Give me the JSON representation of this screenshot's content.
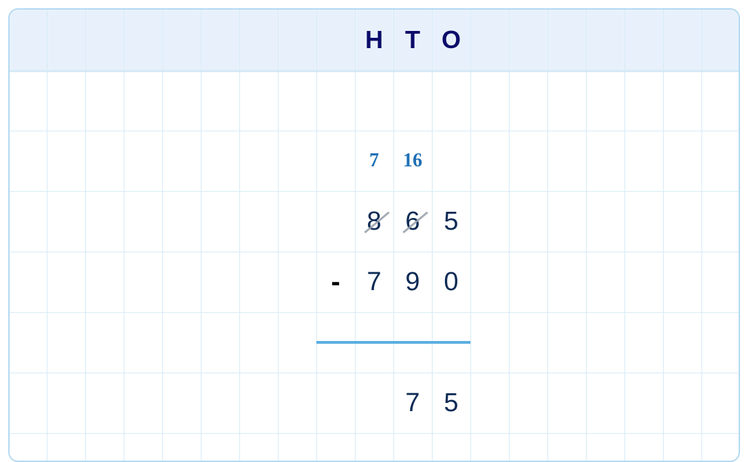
{
  "header": {
    "columns": [
      "H",
      "T",
      "O"
    ]
  },
  "carry": {
    "hundreds": "7",
    "tens": "16"
  },
  "minuend": {
    "hundreds": "8",
    "tens": "6",
    "ones": "5",
    "struck": [
      "hundreds",
      "tens"
    ]
  },
  "subtrahend": {
    "operator": "-",
    "hundreds": "7",
    "tens": "9",
    "ones": "0"
  },
  "result": {
    "tens": "7",
    "ones": "5"
  },
  "colors": {
    "header_bg": "#e8f1fb",
    "grid": "#d6eaf7",
    "carry": "#1f6fb5",
    "digits": "#0d2b55",
    "rule": "#5aaee0",
    "header_text": "#0b0b6b"
  }
}
